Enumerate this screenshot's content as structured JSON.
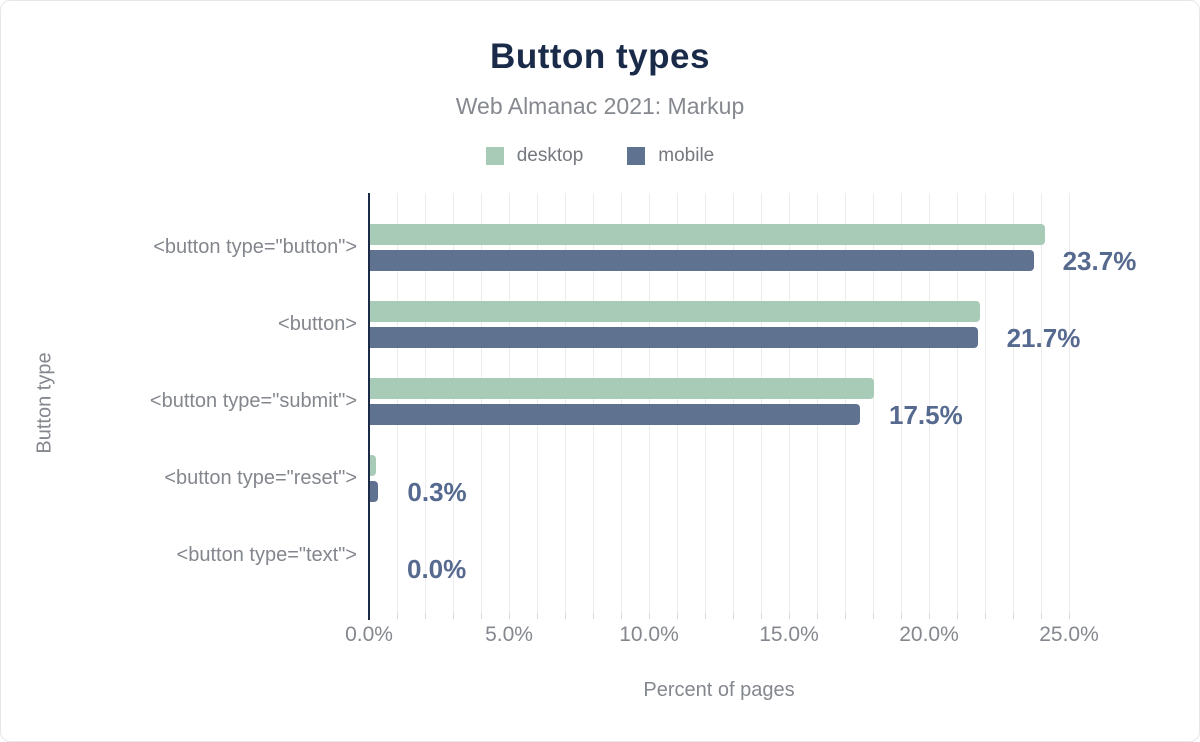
{
  "header": {
    "title": "Button types",
    "subtitle": "Web Almanac 2021: Markup"
  },
  "legend": {
    "items": [
      {
        "label": "desktop",
        "color": "#a8cbb8"
      },
      {
        "label": "mobile",
        "color": "#5f7290"
      }
    ]
  },
  "axes": {
    "x_label": "Percent of pages",
    "y_label": "Button type"
  },
  "colors": {
    "title": "#1a2b49",
    "subtitle_text": "#85898f",
    "axis_line": "#1b2a47",
    "gridline": "#ececec",
    "minor_tick": "#d8d8d8",
    "category_label": "#83878d",
    "tick_label": "#84888e",
    "desktop_bar": "#a8cbb8",
    "mobile_bar": "#5f7290",
    "value_label": "#56698f"
  },
  "chart_data": {
    "type": "bar",
    "orientation": "horizontal",
    "title": "Button types",
    "subtitle": "Web Almanac 2021: Markup",
    "xlabel": "Percent of pages",
    "ylabel": "Button type",
    "xlim": [
      0,
      25
    ],
    "x_minor_gridline_step_pct": 1,
    "grid": "vertical minor gridlines every 1%, major ticks every 5%",
    "legend_position": "top",
    "categories": [
      "<button type=\"button\">",
      "<button>",
      "<button type=\"submit\">",
      "<button type=\"reset\">",
      "<button type=\"text\">"
    ],
    "series": [
      {
        "name": "desktop",
        "color": "#a8cbb8",
        "values": [
          24.1,
          21.8,
          18.0,
          0.2,
          0.0
        ]
      },
      {
        "name": "mobile",
        "color": "#5f7290",
        "values": [
          23.7,
          21.7,
          17.5,
          0.3,
          0.0
        ]
      }
    ],
    "value_labels": [
      "23.7%",
      "21.7%",
      "17.5%",
      "0.3%",
      "0.0%"
    ],
    "value_labels_source": "mobile",
    "xticks": [
      {
        "value": 0,
        "label": "0.0%"
      },
      {
        "value": 5,
        "label": "5.0%"
      },
      {
        "value": 10,
        "label": "10.0%"
      },
      {
        "value": 15,
        "label": "15.0%"
      },
      {
        "value": 20,
        "label": "20.0%"
      },
      {
        "value": 25,
        "label": "25.0%"
      }
    ]
  }
}
